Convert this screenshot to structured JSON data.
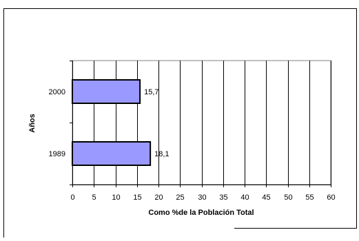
{
  "chart_data": {
    "type": "bar",
    "orientation": "horizontal",
    "categories": [
      "2000",
      "1989"
    ],
    "values": [
      15.7,
      18.1
    ],
    "data_labels": [
      "15,7",
      "18,1"
    ],
    "xlabel": "Como %de la Población Total",
    "ylabel": "Años",
    "xlim": [
      0,
      60
    ],
    "xticks": [
      "0",
      "5",
      "10",
      "15",
      "20",
      "25",
      "30",
      "35",
      "40",
      "45",
      "50",
      "55",
      "60"
    ],
    "grid": "vertical",
    "bar_color": "#9999ff",
    "bar_edge_color": "#000000"
  }
}
